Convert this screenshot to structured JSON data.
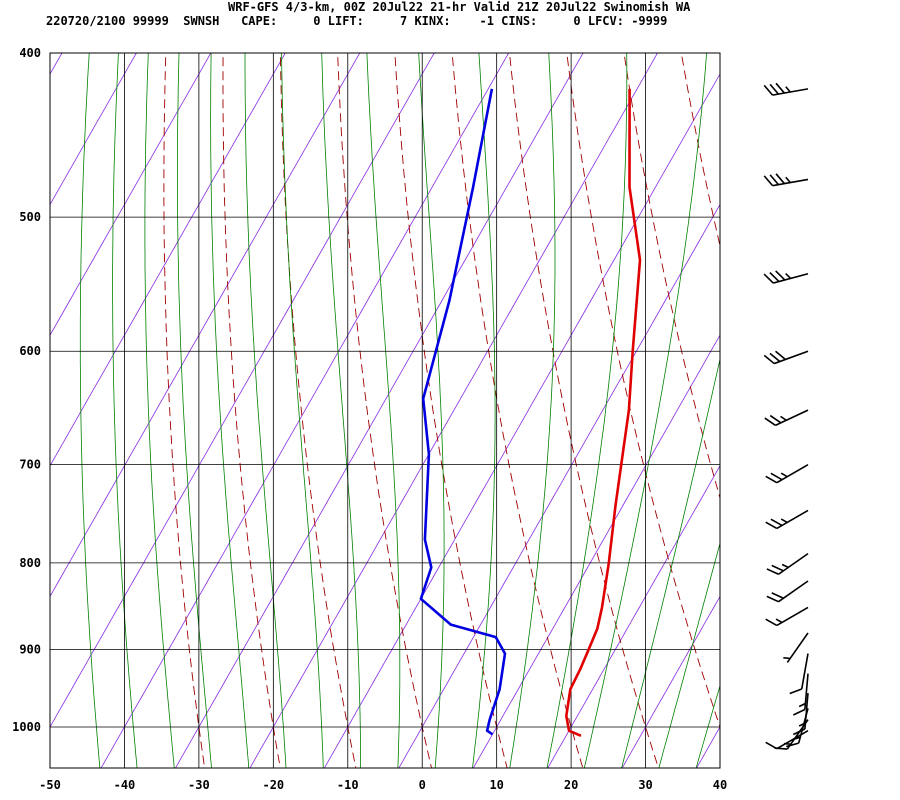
{
  "header": {
    "title": "WRF-GFS 4/3-km, 00Z 20Jul22 21-hr Valid 21Z 20Jul22 Swinomish WA",
    "stats": "220720/2100 99999  SWNSH   CAPE:     0 LIFT:     7 KINX:    -1 CINS:     0 LFCV: -9999"
  },
  "colors": {
    "temperature": "#e00000",
    "dewpoint": "#0000e0",
    "dry_adiabat": "#a00000",
    "moist_adiabat": "#008000",
    "isotherm_skew": "#8a2be2",
    "grid": "#000000",
    "barb": "#000000"
  },
  "chart_data": {
    "type": "line",
    "diagram": "skew-T log-p",
    "x_range": [
      -50,
      40
    ],
    "x_ticks": [
      "-50",
      "-40",
      "-30",
      "-20",
      "-10",
      "0",
      "10",
      "20",
      "30",
      "40"
    ],
    "p_range": [
      400,
      1040
    ],
    "p_scale": "log",
    "p_ticks": [
      "400",
      "500",
      "600",
      "700",
      "800",
      "900",
      "1000"
    ],
    "grid": true,
    "series": [
      {
        "role": "temperature",
        "color": "#e00000",
        "points": [
          [
            420,
            -21
          ],
          [
            480,
            -13.5
          ],
          [
            530,
            -6.5
          ],
          [
            600,
            -0.5
          ],
          [
            650,
            3.5
          ],
          [
            740,
            9
          ],
          [
            800,
            12.5
          ],
          [
            850,
            15
          ],
          [
            875,
            16
          ],
          [
            905,
            16.5
          ],
          [
            925,
            16.8
          ],
          [
            950,
            17
          ],
          [
            985,
            18.5
          ],
          [
            1005,
            20
          ],
          [
            1012,
            22
          ]
        ]
      },
      {
        "role": "dewpoint",
        "color": "#0000e0",
        "points": [
          [
            420,
            -39.5
          ],
          [
            480,
            -34.5
          ],
          [
            560,
            -29
          ],
          [
            640,
            -25
          ],
          [
            690,
            -20
          ],
          [
            775,
            -14
          ],
          [
            805,
            -11
          ],
          [
            840,
            -10
          ],
          [
            870,
            -4
          ],
          [
            885,
            3
          ],
          [
            905,
            5.5
          ],
          [
            950,
            7.5
          ],
          [
            990,
            8.5
          ],
          [
            1005,
            9
          ],
          [
            1010,
            10
          ]
        ]
      }
    ],
    "wind_barbs": [
      {
        "p": 420,
        "dir": 260,
        "speed_kt": 35
      },
      {
        "p": 475,
        "dir": 260,
        "speed_kt": 35
      },
      {
        "p": 540,
        "dir": 255,
        "speed_kt": 35
      },
      {
        "p": 600,
        "dir": 250,
        "speed_kt": 30
      },
      {
        "p": 650,
        "dir": 245,
        "speed_kt": 25
      },
      {
        "p": 700,
        "dir": 240,
        "speed_kt": 25
      },
      {
        "p": 745,
        "dir": 240,
        "speed_kt": 25
      },
      {
        "p": 790,
        "dir": 235,
        "speed_kt": 25
      },
      {
        "p": 820,
        "dir": 235,
        "speed_kt": 20
      },
      {
        "p": 850,
        "dir": 240,
        "speed_kt": 15
      },
      {
        "p": 880,
        "dir": 215,
        "speed_kt": 5
      },
      {
        "p": 905,
        "dir": 190,
        "speed_kt": 10
      },
      {
        "p": 930,
        "dir": 185,
        "speed_kt": 15
      },
      {
        "p": 955,
        "dir": 185,
        "speed_kt": 15
      },
      {
        "p": 975,
        "dir": 195,
        "speed_kt": 15
      },
      {
        "p": 990,
        "dir": 215,
        "speed_kt": 15
      },
      {
        "p": 1005,
        "dir": 240,
        "speed_kt": 10
      }
    ]
  }
}
